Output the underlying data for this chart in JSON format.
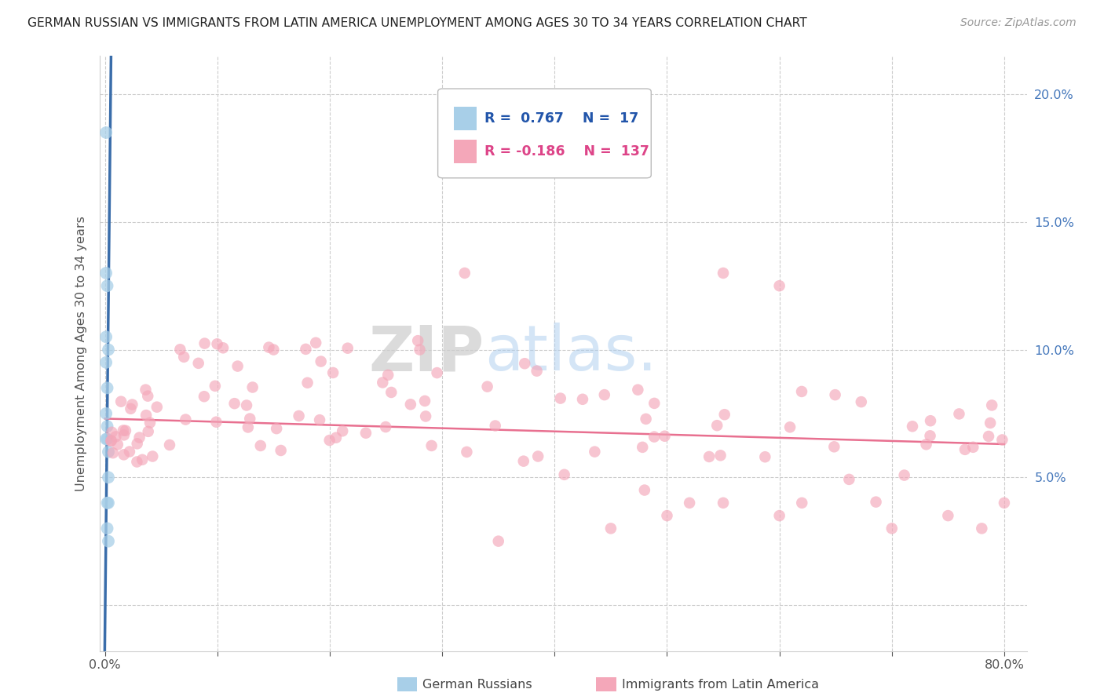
{
  "title": "GERMAN RUSSIAN VS IMMIGRANTS FROM LATIN AMERICA UNEMPLOYMENT AMONG AGES 30 TO 34 YEARS CORRELATION CHART",
  "source": "Source: ZipAtlas.com",
  "ylabel": "Unemployment Among Ages 30 to 34 years",
  "xlim": [
    -0.005,
    0.82
  ],
  "ylim": [
    -0.018,
    0.215
  ],
  "xtick_vals": [
    0.0,
    0.1,
    0.2,
    0.3,
    0.4,
    0.5,
    0.6,
    0.7,
    0.8
  ],
  "ytick_vals": [
    0.0,
    0.05,
    0.1,
    0.15,
    0.2
  ],
  "xtick_labels": [
    "0.0%",
    "",
    "",
    "",
    "",
    "",
    "",
    "",
    "80.0%"
  ],
  "ytick_labels_right": [
    "",
    "5.0%",
    "10.0%",
    "15.0%",
    "20.0%"
  ],
  "blue_color": "#a8cfe8",
  "pink_color": "#f4a7b9",
  "blue_line_color": "#3a6daa",
  "pink_line_color": "#e87090",
  "bottom_legend_blue": "German Russians",
  "bottom_legend_pink": "Immigrants from Latin America",
  "blue_x": [
    0.001,
    0.001,
    0.001,
    0.001,
    0.001,
    0.001,
    0.002,
    0.002,
    0.002,
    0.002,
    0.002,
    0.002,
    0.003,
    0.003,
    0.003,
    0.003,
    0.003
  ],
  "blue_y": [
    0.185,
    0.13,
    0.105,
    0.095,
    0.075,
    0.065,
    0.125,
    0.085,
    0.07,
    0.065,
    0.04,
    0.03,
    0.1,
    0.06,
    0.05,
    0.04,
    0.025
  ],
  "pink_line_x0": 0.0,
  "pink_line_x1": 0.8,
  "pink_line_y0": 0.073,
  "pink_line_y1": 0.063,
  "blue_line_xstart": -0.001,
  "blue_line_xend": 0.0055,
  "blue_line_ystart": -0.05,
  "blue_line_yend": 0.22
}
